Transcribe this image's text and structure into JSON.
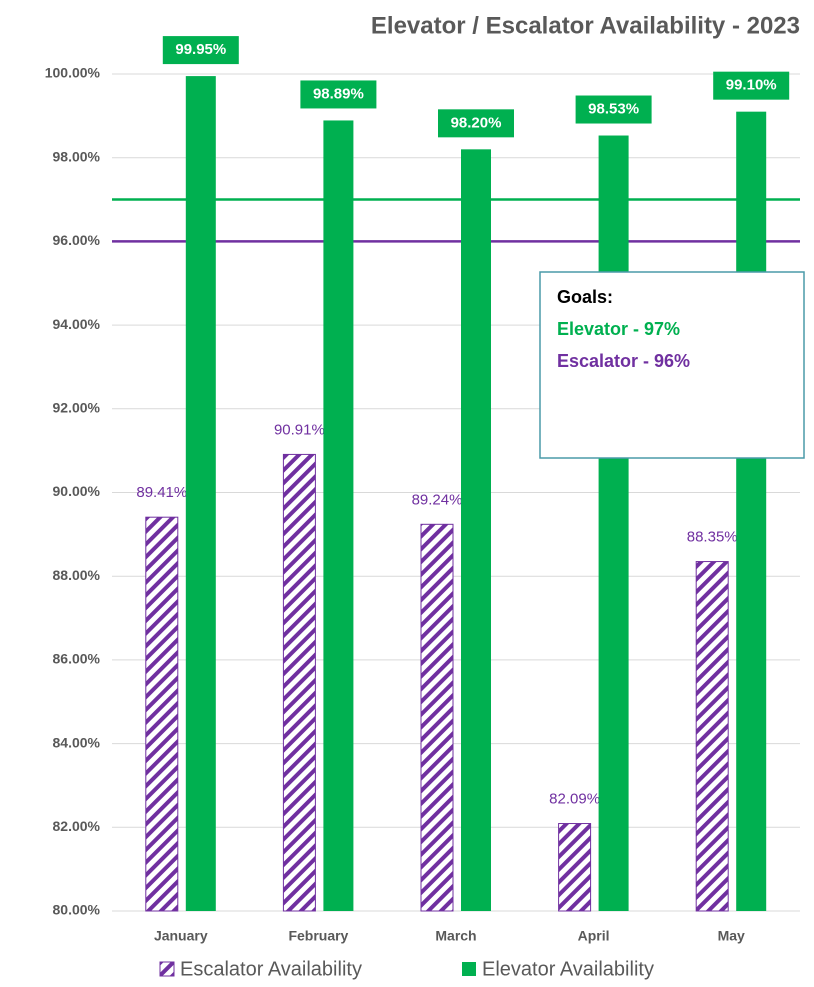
{
  "chart_data": {
    "type": "bar",
    "title": "Elevator / Escalator Availability - 2023",
    "categories": [
      "January",
      "February",
      "March",
      "April",
      "May"
    ],
    "series": [
      {
        "name": "Escalator Availability",
        "color": "#7030a0",
        "pattern": "hatch",
        "values": [
          89.41,
          90.91,
          89.24,
          82.09,
          88.35
        ],
        "value_labels": [
          "89.41%",
          "90.91%",
          "89.24%",
          "82.09%",
          "88.35%"
        ]
      },
      {
        "name": "Elevator Availability",
        "color": "#00b050",
        "values": [
          99.95,
          98.89,
          98.2,
          98.53,
          99.1
        ],
        "value_labels": [
          "99.95%",
          "98.89%",
          "98.20%",
          "98.53%",
          "99.10%"
        ]
      }
    ],
    "ylim": [
      80,
      100
    ],
    "yticks": [
      {
        "value": 80,
        "label": "80.00%"
      },
      {
        "value": 82,
        "label": "82.00%"
      },
      {
        "value": 84,
        "label": "84.00%"
      },
      {
        "value": 86,
        "label": "86.00%"
      },
      {
        "value": 88,
        "label": "88.00%"
      },
      {
        "value": 90,
        "label": "90.00%"
      },
      {
        "value": 92,
        "label": "92.00%"
      },
      {
        "value": 94,
        "label": "94.00%"
      },
      {
        "value": 96,
        "label": "96.00%"
      },
      {
        "value": 98,
        "label": "98.00%"
      },
      {
        "value": 100,
        "label": "100.00%"
      }
    ],
    "grid": true,
    "annotation_title": "Goals:",
    "reference_lines": [
      {
        "value": 97,
        "color": "#00b050",
        "label": "Elevator - 97%"
      },
      {
        "value": 96,
        "color": "#7030a0",
        "label": "Escalator - 96%"
      }
    ]
  }
}
